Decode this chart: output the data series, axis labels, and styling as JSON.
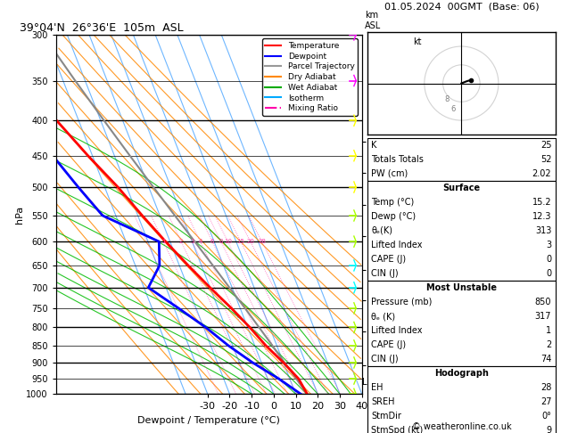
{
  "title_left": "39°04'N  26°36'E  105m  ASL",
  "title_right": "01.05.2024  00GMT  (Base: 06)",
  "ylabel_left": "hPa",
  "xlabel": "Dewpoint / Temperature (°C)",
  "pressure_levels": [
    300,
    350,
    400,
    450,
    500,
    550,
    600,
    650,
    700,
    750,
    800,
    850,
    900,
    950,
    1000
  ],
  "legend_items": [
    {
      "label": "Temperature",
      "color": "#ff0000",
      "ls": "-"
    },
    {
      "label": "Dewpoint",
      "color": "#0000ff",
      "ls": "-"
    },
    {
      "label": "Parcel Trajectory",
      "color": "#999999",
      "ls": "-"
    },
    {
      "label": "Dry Adiabat",
      "color": "#ff8800",
      "ls": "-"
    },
    {
      "label": "Wet Adiabat",
      "color": "#00aa00",
      "ls": "-"
    },
    {
      "label": "Isotherm",
      "color": "#00aaff",
      "ls": "-"
    },
    {
      "label": "Mixing Ratio",
      "color": "#ff00aa",
      "ls": "-."
    }
  ],
  "km_ticks": [
    1,
    2,
    3,
    4,
    5,
    6,
    7,
    8
  ],
  "km_pressures": [
    908,
    812,
    730,
    660,
    590,
    530,
    477,
    430
  ],
  "lcl_pressure": 960,
  "stats": {
    "K": 25,
    "Totals_Totals": 52,
    "PW_cm": "2.02",
    "Surface_Temp": "15.2",
    "Surface_Dewp": "12.3",
    "theta_e_K": 313,
    "Lifted_Index": 3,
    "CAPE_J": 0,
    "CIN_J": 0,
    "MU_Pressure_mb": 850,
    "MU_theta_e_K": 317,
    "MU_Lifted_Index": 1,
    "MU_CAPE_J": 2,
    "MU_CIN_J": 74,
    "EH": 28,
    "SREH": 27,
    "StmDir": "0°",
    "StmSpd_kt": 9
  },
  "bg_color": "#ffffff",
  "T_min": -35,
  "T_max": 40,
  "P_min": 300,
  "P_max": 1000,
  "skew_deg": 45,
  "temp_profile_T": [
    15.2,
    14.0,
    10.0,
    5.0,
    1.0,
    -4.0,
    -10.0,
    -16.0,
    -22.0,
    -28.0,
    -34.0,
    -42.0,
    -50.0,
    -58.0,
    -62.0
  ],
  "temp_profile_Td": [
    12.3,
    5.0,
    -4.0,
    -12.0,
    -19.0,
    -28.0,
    -38.0,
    -29.0,
    -25.0,
    -46.0,
    -52.0,
    -58.0,
    -64.0,
    -70.0,
    -75.0
  ],
  "temp_profile_P": [
    1000,
    950,
    900,
    850,
    800,
    750,
    700,
    650,
    600,
    550,
    500,
    450,
    400,
    350,
    300
  ],
  "parcel_T": [
    15.2,
    13.0,
    10.5,
    8.0,
    5.2,
    2.2,
    -1.2,
    -4.8,
    -8.8,
    -13.2,
    -17.9,
    -23.0,
    -28.5,
    -34.5,
    -41.0
  ],
  "parcel_P": [
    1000,
    950,
    900,
    850,
    800,
    750,
    700,
    650,
    600,
    550,
    500,
    450,
    400,
    350,
    300
  ],
  "isotherm_temps": [
    -40,
    -30,
    -20,
    -10,
    0,
    10,
    20,
    30,
    40
  ],
  "theta_dry": [
    230,
    240,
    250,
    260,
    270,
    280,
    290,
    300,
    310,
    320,
    330,
    340,
    350,
    360,
    370,
    380
  ],
  "moist_adiabat_T0": [
    -10,
    -5,
    0,
    5,
    10,
    15,
    20,
    25,
    30,
    35
  ],
  "mixing_ratios": [
    0.5,
    1,
    2,
    3,
    4,
    6,
    8,
    10,
    15,
    20,
    28
  ],
  "mr_label_vals": [
    1,
    2,
    3,
    4,
    6,
    8,
    10,
    15,
    20,
    28
  ],
  "wind_levels": [
    {
      "p": 1000,
      "color": "#ff00ff",
      "type": "barb",
      "u": 0,
      "v": 2
    },
    {
      "p": 950,
      "color": "#ff00ff",
      "type": "barb",
      "u": 2,
      "v": 4
    },
    {
      "p": 900,
      "color": "#ffff00",
      "type": "barb",
      "u": 3,
      "v": 5
    },
    {
      "p": 850,
      "color": "#ffff00",
      "type": "barb",
      "u": 4,
      "v": 6
    },
    {
      "p": 800,
      "color": "#ffff00",
      "type": "barb",
      "u": 5,
      "v": 5
    },
    {
      "p": 750,
      "color": "#88ff00",
      "type": "barb",
      "u": 5,
      "v": 4
    },
    {
      "p": 700,
      "color": "#88ff00",
      "type": "barb",
      "u": 4,
      "v": 3
    },
    {
      "p": 650,
      "color": "#00ffff",
      "type": "barb",
      "u": 3,
      "v": 3
    },
    {
      "p": 600,
      "color": "#00ffff",
      "type": "barb",
      "u": 3,
      "v": 2
    },
    {
      "p": 550,
      "color": "#88ff00",
      "type": "barb",
      "u": 4,
      "v": 2
    },
    {
      "p": 500,
      "color": "#88ff00",
      "type": "barb",
      "u": 5,
      "v": 1
    },
    {
      "p": 450,
      "color": "#88ff00",
      "type": "barb",
      "u": 5,
      "v": 0
    },
    {
      "p": 400,
      "color": "#88ff00",
      "type": "barb",
      "u": 4,
      "v": -1
    },
    {
      "p": 350,
      "color": "#88ff00",
      "type": "barb",
      "u": 3,
      "v": -2
    },
    {
      "p": 300,
      "color": "#88ff00",
      "type": "barb",
      "u": 2,
      "v": -3
    }
  ]
}
